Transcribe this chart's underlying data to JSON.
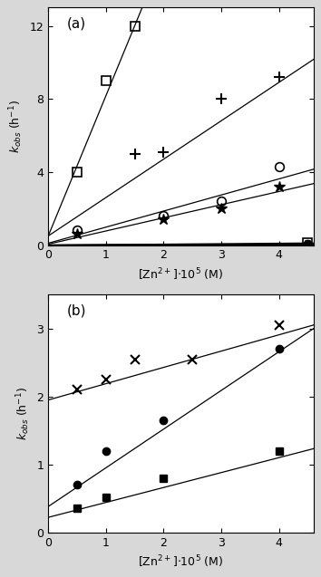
{
  "panel_a": {
    "title": "(a)",
    "xlim": [
      0,
      4.6
    ],
    "ylim": [
      0,
      13
    ],
    "xticks": [
      0,
      1,
      2,
      3,
      4
    ],
    "yticks": [
      0,
      4,
      8,
      12
    ],
    "imipenem": {
      "x": [
        0.5,
        1.0,
        1.5
      ],
      "y": [
        4.0,
        9.0,
        12.0
      ],
      "intercept": 0.5,
      "slope": 7.67
    },
    "amoxicillin": {
      "x": [
        1.5,
        2.0,
        3.0,
        4.0
      ],
      "y": [
        5.0,
        5.1,
        8.0,
        9.2
      ],
      "intercept": 0.5,
      "slope": 2.1
    },
    "sch29482": {
      "x": [
        0.5,
        2.0,
        3.0,
        4.0
      ],
      "y": [
        0.8,
        1.6,
        2.4,
        4.3
      ],
      "intercept": 0.1,
      "slope": 0.88
    },
    "clavulanic": {
      "x": [
        0.5,
        2.0,
        3.0,
        4.0
      ],
      "y": [
        0.6,
        1.4,
        2.0,
        3.2
      ],
      "intercept": 0.05,
      "slope": 0.72
    },
    "cephaloglycin_a": {
      "x": [
        4.5
      ],
      "y": [
        0.15
      ],
      "intercept": 0.0,
      "slope": 0.025
    },
    "moxalactam": {
      "x": [
        4.5
      ],
      "y": [
        0.07
      ],
      "intercept": 0.0,
      "slope": 0.012
    },
    "aztreonam": {
      "x": [
        4.5
      ],
      "y": [
        0.04
      ],
      "intercept": 0.0,
      "slope": 0.007
    },
    "nocardicin": {
      "x": [
        4.5
      ],
      "y": [
        0.02
      ],
      "intercept": 0.0,
      "slope": 0.003
    }
  },
  "panel_b": {
    "title": "(b)",
    "xlim": [
      0,
      4.6
    ],
    "ylim": [
      0,
      3.5
    ],
    "xticks": [
      0,
      1,
      2,
      3,
      4
    ],
    "yticks": [
      0,
      1,
      2,
      3
    ],
    "cephaloglycin_b": {
      "x": [
        0.5,
        1.0,
        1.5,
        2.5,
        4.0
      ],
      "y": [
        2.1,
        2.25,
        2.55,
        2.55,
        3.05
      ],
      "intercept": 1.95,
      "slope": 0.24
    },
    "cephaloridine": {
      "x": [
        0.5,
        1.0,
        2.0,
        4.0
      ],
      "y": [
        0.7,
        1.2,
        1.65,
        2.7
      ],
      "intercept": 0.38,
      "slope": 0.57
    },
    "cephalothin": {
      "x": [
        0.5,
        1.0,
        2.0,
        4.0
      ],
      "y": [
        0.35,
        0.52,
        0.8,
        1.2
      ],
      "intercept": 0.22,
      "slope": 0.22
    }
  },
  "bg_color": "#d8d8d8",
  "plot_bg": "#ffffff"
}
